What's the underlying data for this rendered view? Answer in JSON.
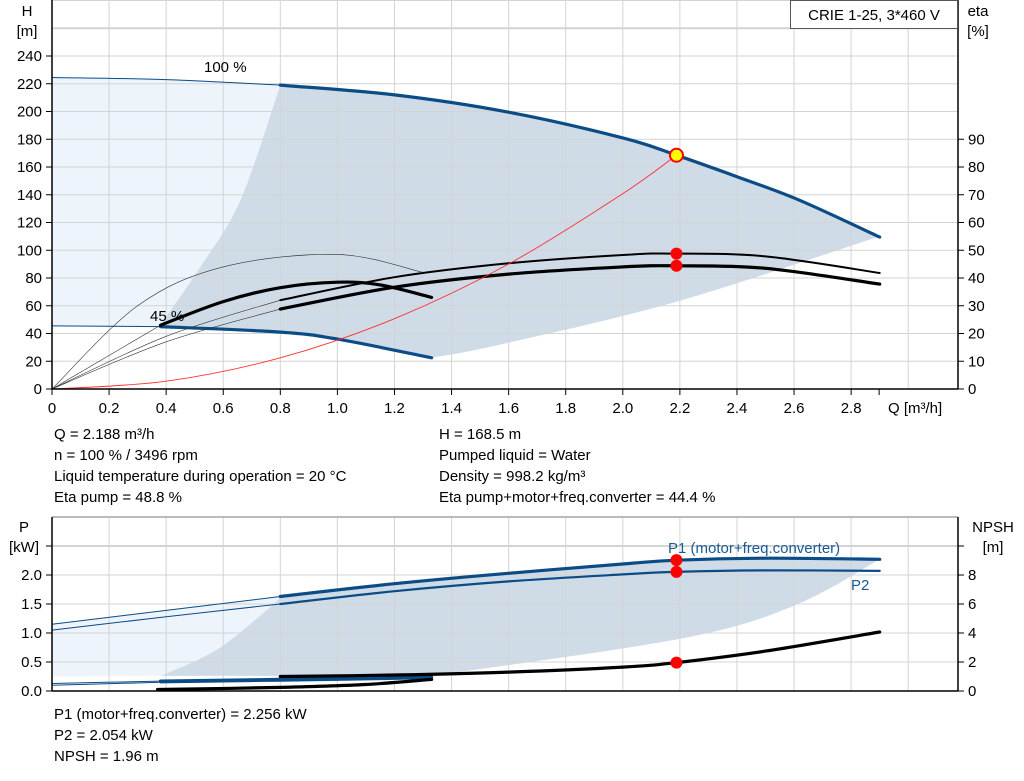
{
  "chart_data": [
    {
      "type": "line",
      "title": "CRIE 1-25, 3*460 V",
      "xlabel": "Q [m³/h]",
      "ylabel": [
        "H",
        "[m]"
      ],
      "y2label": [
        "eta",
        "[%]"
      ],
      "xlim": [
        0,
        3.17
      ],
      "ylim": [
        0,
        280
      ],
      "y2lim": [
        0,
        140
      ],
      "grid": true,
      "xticks": [
        "0",
        "0.2",
        "0.4",
        "0.6",
        "0.8",
        "1.0",
        "1.2",
        "1.4",
        "1.6",
        "1.8",
        "2.0",
        "2.2",
        "2.4",
        "2.6",
        "2.8"
      ],
      "yticks": [
        "0",
        "20",
        "40",
        "60",
        "80",
        "100",
        "120",
        "140",
        "160",
        "180",
        "200",
        "220",
        "240"
      ],
      "y2ticks": [
        "0",
        "10",
        "20",
        "30",
        "40",
        "50",
        "60",
        "70",
        "80",
        "90"
      ],
      "annotations": [
        "100 %",
        "45 %"
      ],
      "series": [
        {
          "id": "head_100",
          "axis": "H",
          "color": "#0b4c86",
          "thin_until": 0.8,
          "points": [
            [
              0,
              224.5
            ],
            [
              0.4,
              223
            ],
            [
              0.8,
              219
            ],
            [
              1.2,
              212
            ],
            [
              1.6,
              199.5
            ],
            [
              2.0,
              181
            ],
            [
              2.188,
              168.5
            ],
            [
              2.4,
              153
            ],
            [
              2.62,
              136
            ],
            [
              2.9,
              109.5
            ]
          ]
        },
        {
          "id": "head_45",
          "axis": "H",
          "color": "#0b4c86",
          "thin_until": 0.38,
          "points": [
            [
              0,
              45.5
            ],
            [
              0.38,
              45
            ],
            [
              0.8,
              41
            ],
            [
              1.0,
              36
            ],
            [
              1.33,
              22.5
            ]
          ]
        },
        {
          "id": "eta_pump_100",
          "axis": "eta",
          "color": "#000000",
          "thin_until": 0.8,
          "points": [
            [
              0,
              0
            ],
            [
              0.4,
              19
            ],
            [
              0.8,
              32
            ],
            [
              1.2,
              40.3
            ],
            [
              1.6,
              45.3
            ],
            [
              2.0,
              48.3
            ],
            [
              2.188,
              48.8
            ],
            [
              2.5,
              47.8
            ],
            [
              2.9,
              41.8
            ]
          ]
        },
        {
          "id": "eta_total_100",
          "axis": "eta",
          "color": "#000000",
          "thick": true,
          "thin_until": 0.8,
          "points": [
            [
              0,
              0
            ],
            [
              0.4,
              17
            ],
            [
              0.8,
              28.8
            ],
            [
              1.2,
              36.7
            ],
            [
              1.6,
              41.4
            ],
            [
              2.0,
              44.0
            ],
            [
              2.188,
              44.4
            ],
            [
              2.5,
              43.5
            ],
            [
              2.9,
              37.8
            ]
          ]
        },
        {
          "id": "eta_pump_45",
          "axis": "eta",
          "color": "#000000",
          "thin_until": 1.4,
          "points": [
            [
              0,
              0
            ],
            [
              0.3,
              30
            ],
            [
              0.6,
              44
            ],
            [
              1.0,
              48.5
            ],
            [
              1.3,
              42
            ]
          ]
        },
        {
          "id": "eta_total_45",
          "axis": "eta",
          "color": "#000000",
          "thick": true,
          "thin_until": 0.38,
          "points": [
            [
              0,
              0
            ],
            [
              0.38,
              23
            ],
            [
              0.6,
              31.5
            ],
            [
              0.8,
              36.5
            ],
            [
              1.0,
              38.5
            ],
            [
              1.15,
              37.5
            ],
            [
              1.33,
              33
            ]
          ]
        },
        {
          "id": "system_curve",
          "axis": "H",
          "color": "#ff3030",
          "thin_until": 3,
          "points": [
            [
              0,
              0
            ],
            [
              0.4,
              5.6
            ],
            [
              0.8,
              22.5
            ],
            [
              1.2,
              50.7
            ],
            [
              1.6,
              90.1
            ],
            [
              2.0,
              140.8
            ],
            [
              2.188,
              168.5
            ]
          ]
        }
      ],
      "operating_range": {
        "left_boundary": [
          [
            0.38,
            45
          ],
          [
            0.4,
            52
          ],
          [
            0.52,
            88
          ],
          [
            0.66,
            136
          ],
          [
            0.8,
            219
          ]
        ],
        "lower_boundary": [
          [
            1.33,
            22.5
          ],
          [
            1.57,
            32
          ],
          [
            2.19,
            63
          ],
          [
            2.9,
            110
          ]
        ]
      },
      "duty_points": [
        {
          "id": "duty-head",
          "axis": "H",
          "q": 2.188,
          "v": 168.5,
          "color": "#ffff00"
        },
        {
          "id": "duty-eta-pump",
          "axis": "eta",
          "q": 2.188,
          "v": 48.8,
          "color": "#ff0000"
        },
        {
          "id": "duty-eta-total",
          "axis": "eta",
          "q": 2.188,
          "v": 44.4,
          "color": "#ff0000"
        }
      ]
    },
    {
      "type": "line",
      "ylabel": [
        "P",
        "[kW]"
      ],
      "y2label": [
        "NPSH",
        "[m]"
      ],
      "xlim": [
        0,
        3.17
      ],
      "ylim": [
        0,
        2.66
      ],
      "y2lim": [
        0,
        10.6
      ],
      "grid": true,
      "yticks": [
        "0.0",
        "0.5",
        "1.0",
        "1.5",
        "2.0"
      ],
      "y2ticks": [
        "0",
        "2",
        "4",
        "6",
        "8"
      ],
      "labels": {
        "p1": "P1 (motor+freq.converter)",
        "p2": "P2"
      },
      "series": [
        {
          "id": "p1_100",
          "axis": "P",
          "color": "#0b4c86",
          "thick": true,
          "thin_until": 0.8,
          "points": [
            [
              0,
              1.15
            ],
            [
              0.4,
              1.39
            ],
            [
              0.8,
              1.63
            ],
            [
              1.2,
              1.85
            ],
            [
              1.6,
              2.03
            ],
            [
              2.0,
              2.19
            ],
            [
              2.188,
              2.256
            ],
            [
              2.5,
              2.29
            ],
            [
              2.9,
              2.27
            ]
          ]
        },
        {
          "id": "p2_100",
          "axis": "P",
          "color": "#0b4c86",
          "thin_until": 0.8,
          "points": [
            [
              0,
              1.05
            ],
            [
              0.4,
              1.28
            ],
            [
              0.8,
              1.5
            ],
            [
              1.2,
              1.72
            ],
            [
              1.6,
              1.89
            ],
            [
              2.0,
              2.01
            ],
            [
              2.188,
              2.054
            ],
            [
              2.5,
              2.08
            ],
            [
              2.9,
              2.07
            ]
          ]
        },
        {
          "id": "p1_45",
          "axis": "P",
          "color": "#0b4c86",
          "thick": true,
          "thin_until": 0.38,
          "points": [
            [
              0,
              0.13
            ],
            [
              0.38,
              0.17
            ],
            [
              0.8,
              0.2
            ],
            [
              1.33,
              0.24
            ]
          ]
        },
        {
          "id": "p2_45",
          "axis": "P",
          "color": "#0b4c86",
          "thin_until": 0.38,
          "points": [
            [
              0,
              0.1
            ],
            [
              0.38,
              0.15
            ],
            [
              0.8,
              0.18
            ],
            [
              1.33,
              0.22
            ]
          ]
        },
        {
          "id": "npsh_45",
          "axis": "NPSH",
          "color": "#000000",
          "thick": true,
          "thin_until": 0,
          "points": [
            [
              0.37,
              0.1
            ],
            [
              0.8,
              0.25
            ],
            [
              1.1,
              0.45
            ],
            [
              1.33,
              0.8
            ]
          ]
        },
        {
          "id": "npsh_100",
          "axis": "NPSH",
          "color": "#000000",
          "thick": true,
          "thin_until": 0,
          "points": [
            [
              0.8,
              1.0
            ],
            [
              1.2,
              1.1
            ],
            [
              1.6,
              1.3
            ],
            [
              2.0,
              1.65
            ],
            [
              2.188,
              1.96
            ],
            [
              2.5,
              2.75
            ],
            [
              2.9,
              4.07
            ]
          ]
        }
      ],
      "operating_range": {
        "left_boundary": [
          [
            0.38,
            0.26
          ],
          [
            0.58,
            0.72
          ],
          [
            0.77,
            1.47
          ],
          [
            0.8,
            1.63
          ]
        ],
        "lower_boundary": [
          [
            1.33,
            0.26
          ],
          [
            2.2,
            0.9
          ],
          [
            2.6,
            1.47
          ],
          [
            2.9,
            2.27
          ]
        ],
        "light_floor": [
          [
            0,
            0.25
          ],
          [
            0.38,
            0.26
          ]
        ]
      },
      "duty_points": [
        {
          "id": "duty-p1",
          "axis": "P",
          "q": 2.188,
          "v": 2.256,
          "color": "#ff0000"
        },
        {
          "id": "duty-p2",
          "axis": "P",
          "q": 2.188,
          "v": 2.054,
          "color": "#ff0000"
        },
        {
          "id": "duty-npsh",
          "axis": "NPSH",
          "q": 2.188,
          "v": 1.96,
          "color": "#ff0000"
        }
      ]
    }
  ],
  "info_top": {
    "left": [
      "Q = 2.188 m³/h",
      "n = 100 % / 3496 rpm",
      "Liquid temperature during operation = 20 °C",
      "Eta pump = 48.8 %"
    ],
    "right": [
      "H = 168.5 m",
      "Pumped liquid = Water",
      "Density = 998.2 kg/m³",
      "Eta pump+motor+freq.converter = 44.4 %"
    ]
  },
  "info_bottom": [
    "P1 (motor+freq.converter) = 2.256 kW",
    "P2 = 2.054 kW",
    "NPSH = 1.96 m"
  ],
  "colors": {
    "curve_blue": "#0b4c86",
    "range_dark": "#cfdbe7",
    "range_light": "#edf4fc",
    "duty": "#ff0000",
    "label_blue": "#1a5a96"
  }
}
